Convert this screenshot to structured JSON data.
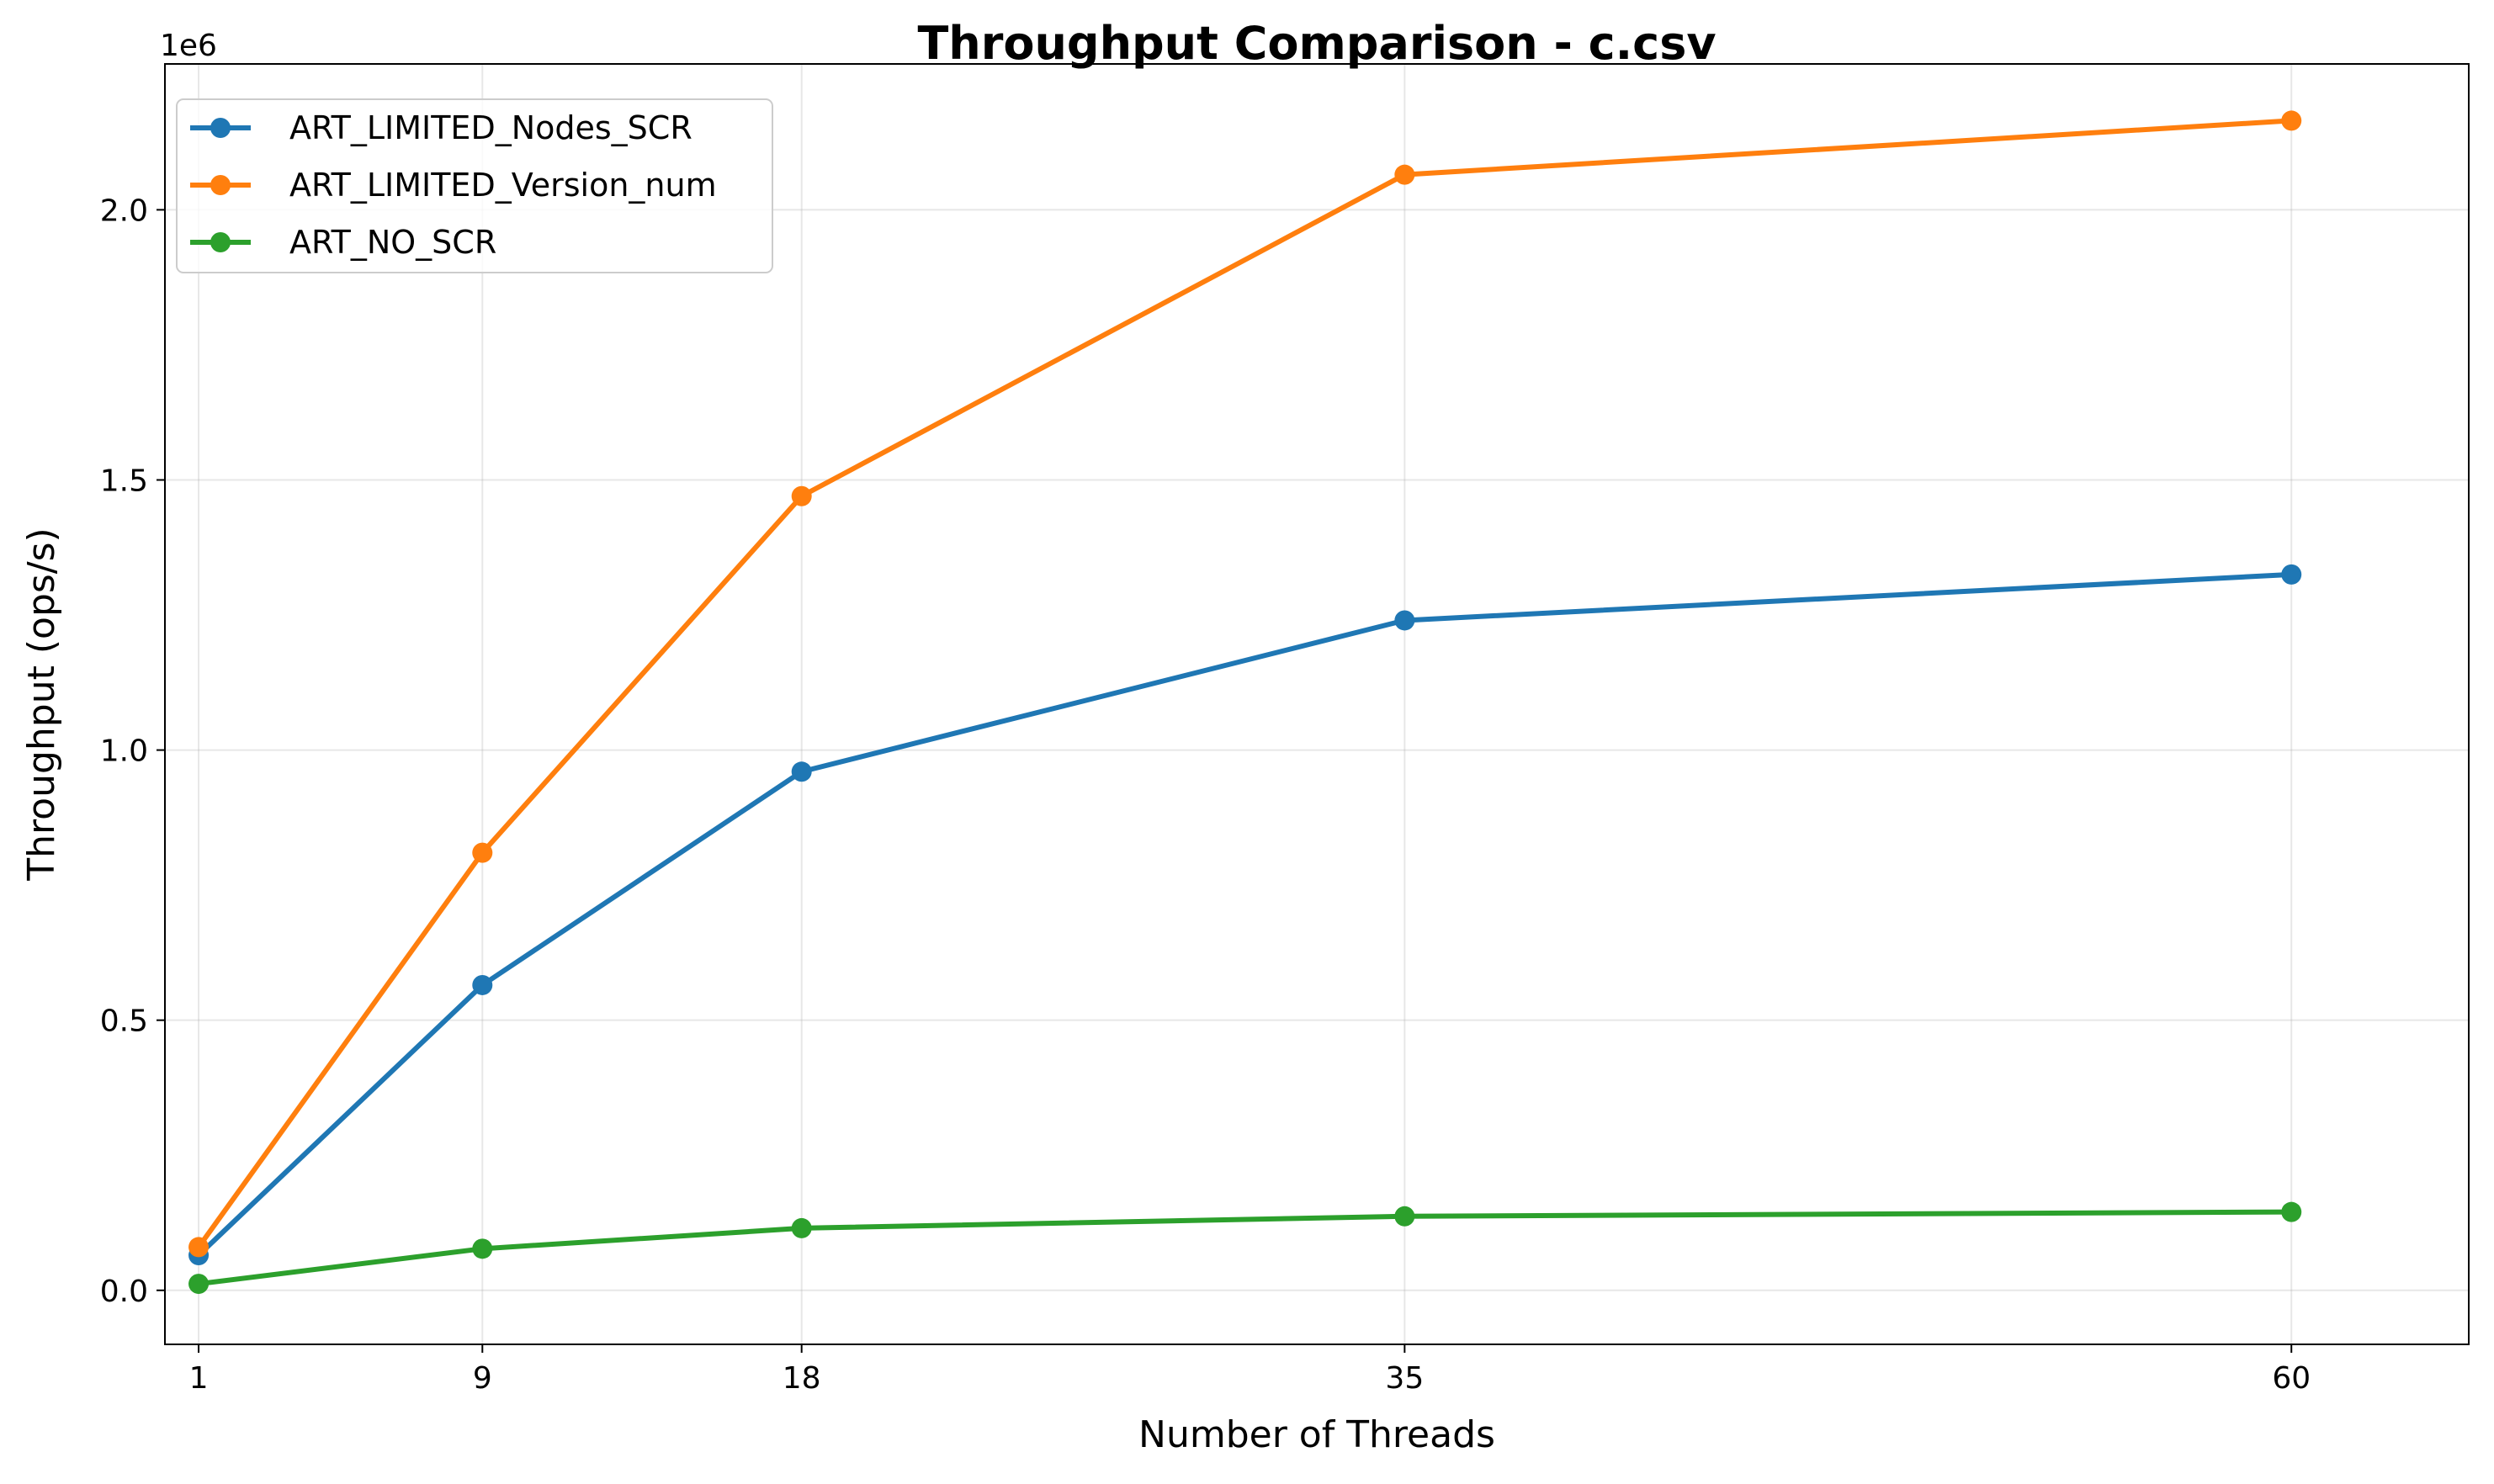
{
  "chart_data": {
    "type": "line",
    "title": "Throughput Comparison - c.csv",
    "xlabel": "Number of Threads",
    "ylabel": "Throughput (ops/s)",
    "y_offset_text": "1e6",
    "x": [
      1,
      9,
      18,
      35,
      60
    ],
    "x_tick_labels": [
      "1",
      "9",
      "18",
      "35",
      "60"
    ],
    "xlim": [
      0.05,
      65.0
    ],
    "ylim": [
      -0.1,
      2.27
    ],
    "y_ticks": [
      0.0,
      0.5,
      1.0,
      1.5,
      2.0
    ],
    "y_tick_labels": [
      "0.0",
      "0.5",
      "1.0",
      "1.5",
      "2.0"
    ],
    "y_unit_scale": 1000000,
    "grid": true,
    "legend_position": "upper-left",
    "series": [
      {
        "name": "ART_LIMITED_Nodes_SCR",
        "color": "#1f77b4",
        "values": [
          0.065,
          0.565,
          0.96,
          1.24,
          1.325
        ]
      },
      {
        "name": "ART_LIMITED_Version_num",
        "color": "#ff7f0e",
        "values": [
          0.08,
          0.81,
          1.47,
          2.065,
          2.165
        ]
      },
      {
        "name": "ART_NO_SCR",
        "color": "#2ca02c",
        "values": [
          0.012,
          0.077,
          0.115,
          0.137,
          0.145
        ]
      }
    ]
  }
}
